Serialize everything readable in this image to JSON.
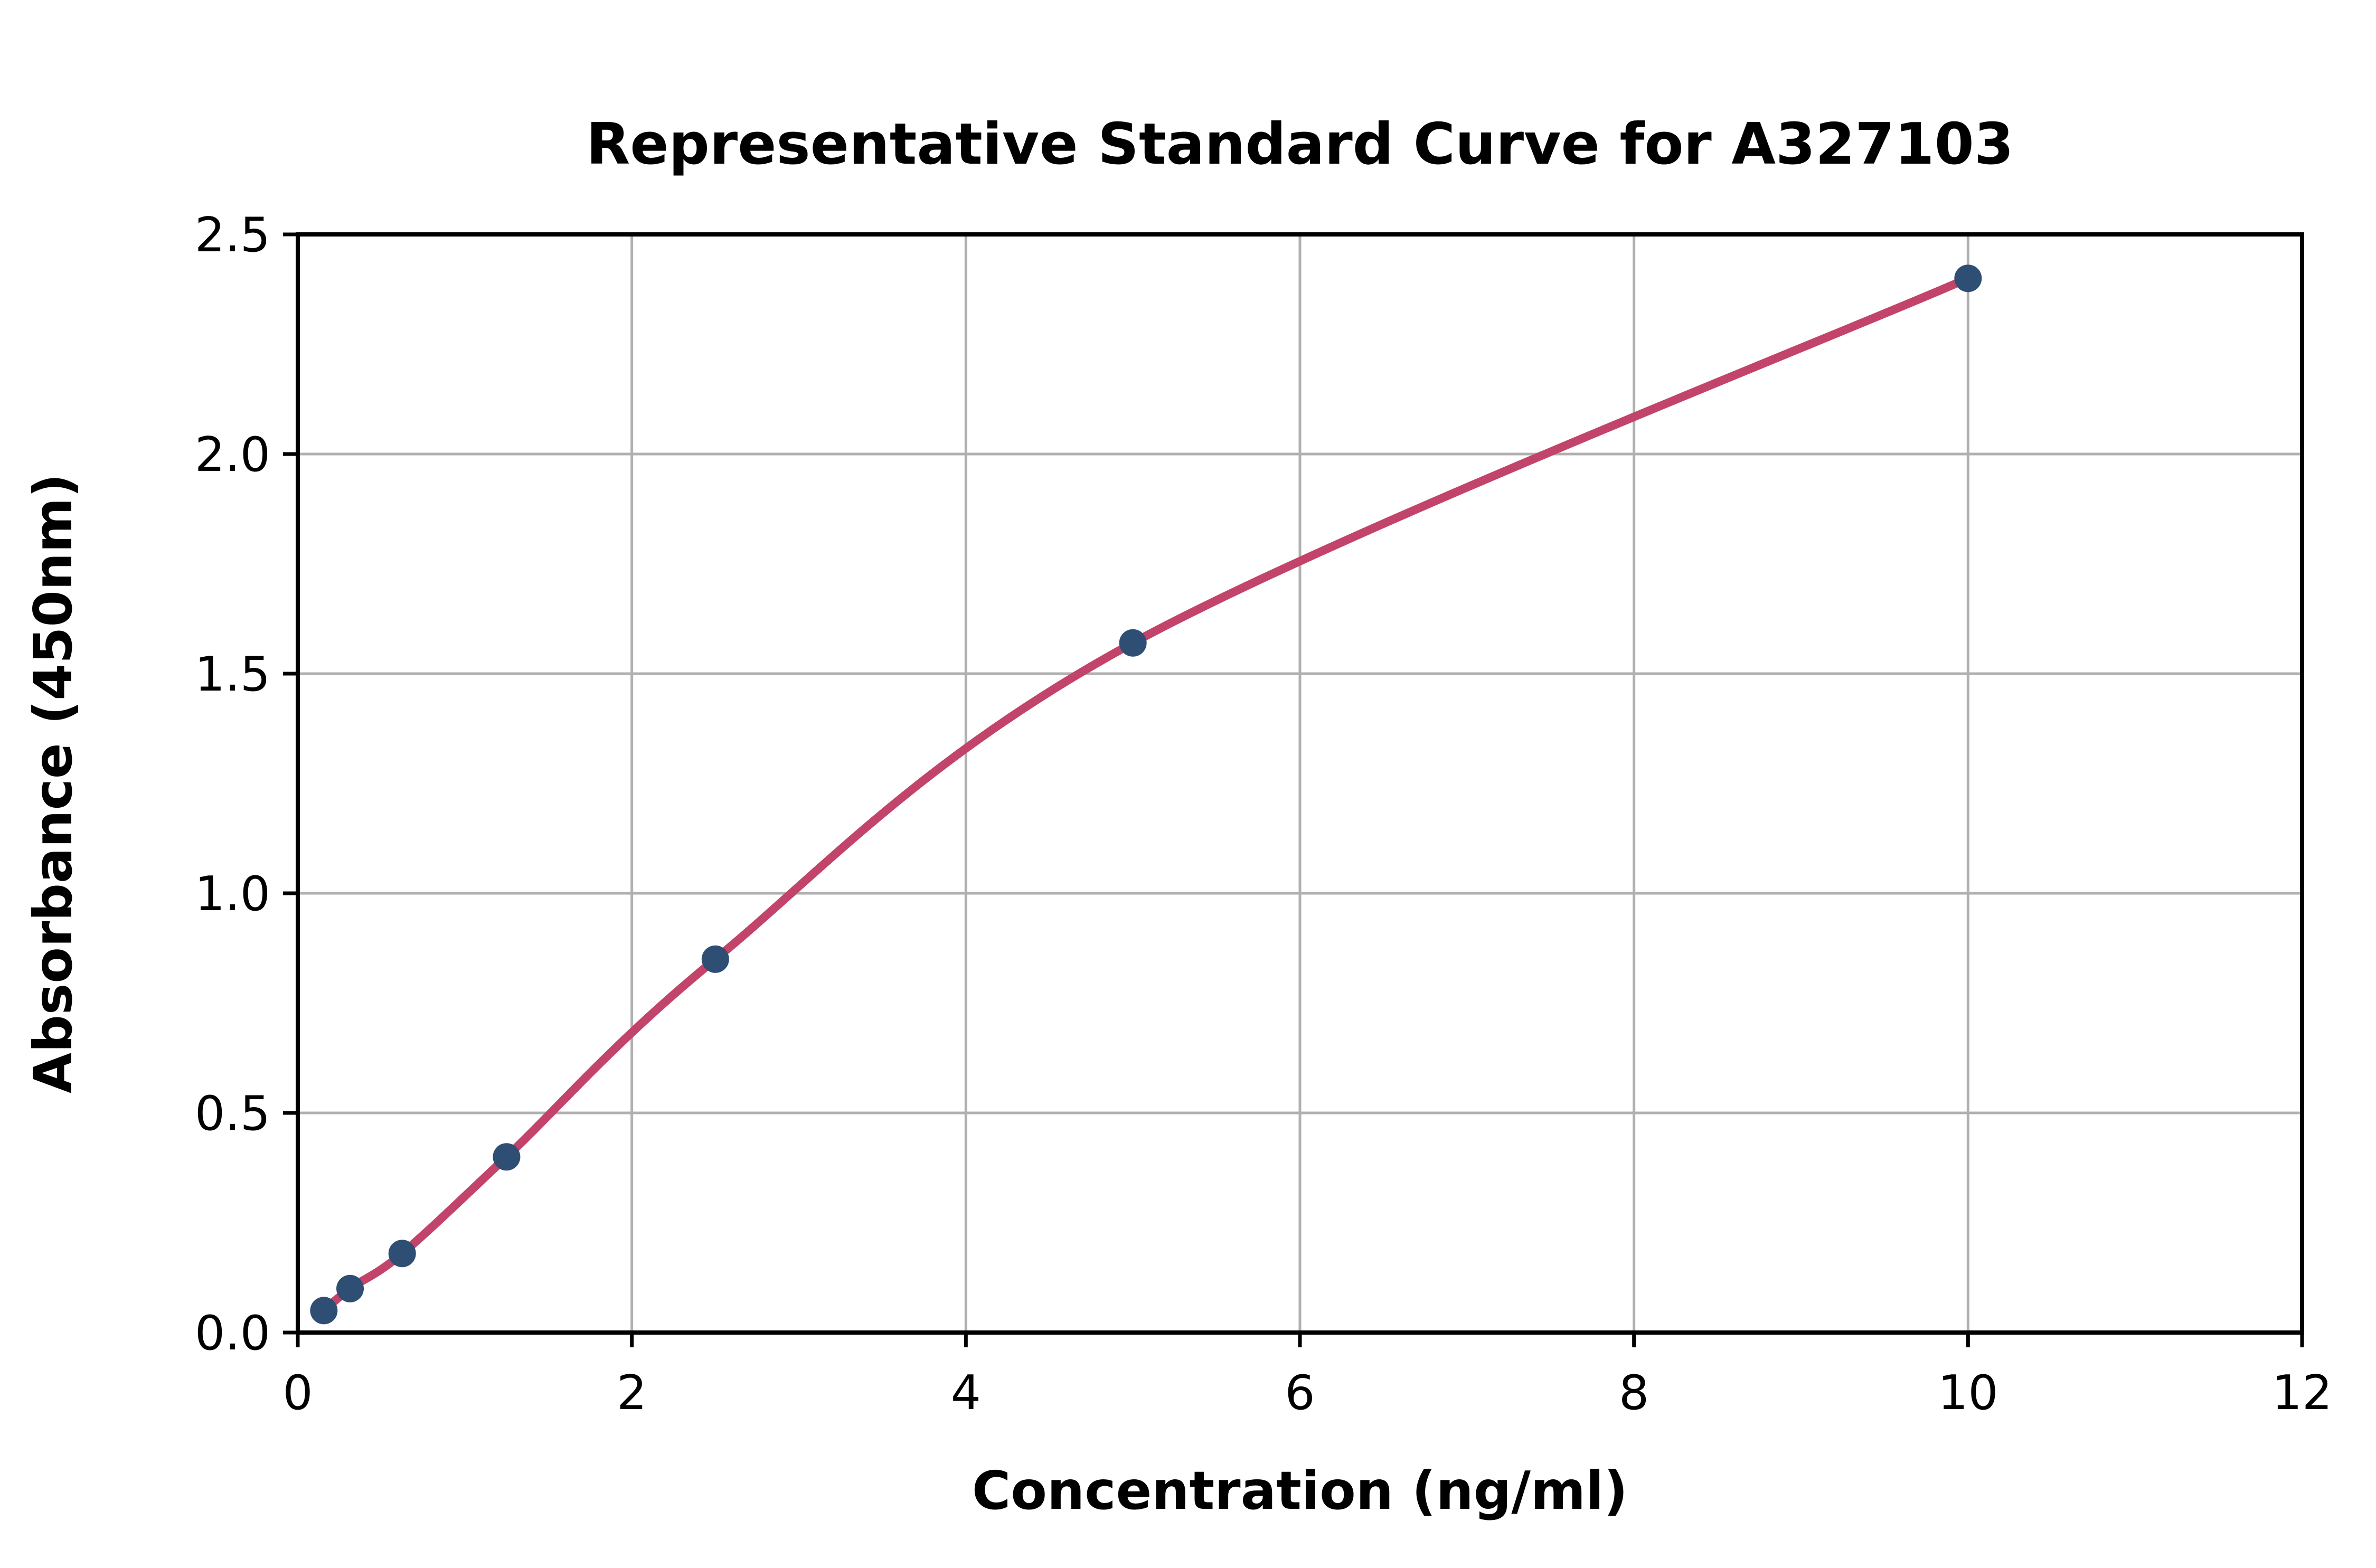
{
  "chart_data": {
    "type": "scatter",
    "title": "Representative Standard Curve for A327103",
    "xlabel": "Concentration (ng/ml)",
    "ylabel": "Absorbance (450nm)",
    "x": [
      0.156,
      0.313,
      0.625,
      1.25,
      2.5,
      5,
      10
    ],
    "y": [
      0.05,
      0.1,
      0.18,
      0.4,
      0.85,
      1.57,
      2.4
    ],
    "series": [
      {
        "name": "standards",
        "style": "markers",
        "values_note": "navy dots at each standard concentration"
      },
      {
        "name": "fitted-curve",
        "style": "smooth-line",
        "values_note": "raspberry fitted curve through all points"
      }
    ],
    "xlim": [
      0,
      12
    ],
    "ylim": [
      0,
      2.5
    ],
    "x_ticks": [
      0,
      2,
      4,
      6,
      8,
      10,
      12
    ],
    "x_tick_labels": [
      "0",
      "2",
      "4",
      "6",
      "8",
      "10",
      "12"
    ],
    "y_ticks": [
      0,
      0.5,
      1.0,
      1.5,
      2.0,
      2.5
    ],
    "y_tick_labels": [
      "0.0",
      "0.5",
      "1.0",
      "1.5",
      "2.0",
      "2.5"
    ],
    "grid": true,
    "legend_position": "none",
    "colors": {
      "line": "#c2446a",
      "marker": "#2e4e73",
      "grid": "#b0b0b0",
      "spine": "#000000",
      "text": "#000000",
      "background": "#ffffff"
    }
  }
}
